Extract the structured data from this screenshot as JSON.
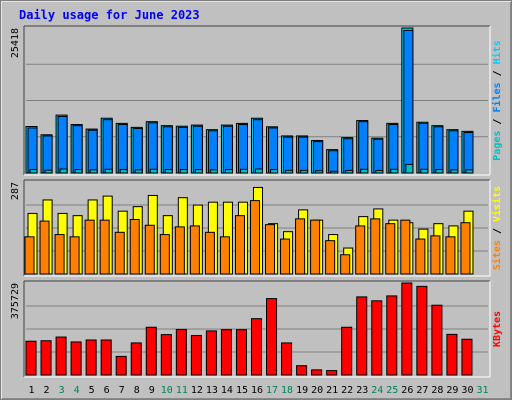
{
  "chart_data": {
    "title": "Daily usage for June 2023",
    "type": "bar",
    "x": [
      "1",
      "2",
      "3",
      "4",
      "5",
      "6",
      "7",
      "8",
      "9",
      "10",
      "11",
      "12",
      "13",
      "14",
      "15",
      "16",
      "17",
      "18",
      "19",
      "20",
      "21",
      "22",
      "23",
      "24",
      "25",
      "26",
      "27",
      "28",
      "29",
      "30",
      "31"
    ],
    "weekend_days": [
      "3",
      "4",
      "10",
      "11",
      "17",
      "18",
      "24",
      "25",
      "31"
    ],
    "panels": [
      {
        "id": "hits-panel",
        "max_label": "25418",
        "ylim": [
          0,
          25418
        ],
        "axis_labels": [
          "Pages",
          "Files",
          "Hits"
        ],
        "series": [
          {
            "name": "Hits",
            "color": "#00ccff",
            "values": [
              8150,
              6700,
              10150,
              8500,
              7700,
              9600,
              8700,
              8000,
              9000,
              8300,
              8200,
              8400,
              7600,
              8400,
              8700,
              9600,
              8100,
              6500,
              6500,
              5700,
              4100,
              6200,
              9200,
              6100,
              8700,
              25418,
              8900,
              8300,
              7600,
              7300,
              0
            ]
          },
          {
            "name": "Files",
            "color": "#0080ff",
            "values": [
              7900,
              6500,
              9900,
              8300,
              7500,
              9350,
              8500,
              7800,
              8800,
              8100,
              8000,
              8200,
              7400,
              8200,
              8500,
              9350,
              7900,
              6300,
              6300,
              5500,
              3900,
              6000,
              9000,
              5900,
              8500,
              25000,
              8700,
              8100,
              7400,
              7100,
              0
            ]
          },
          {
            "name": "Pages",
            "color": "#00c0c0",
            "values": [
              600,
              500,
              700,
              600,
              550,
              650,
              600,
              550,
              650,
              600,
              600,
              600,
              550,
              600,
              650,
              700,
              600,
              450,
              450,
              400,
              300,
              450,
              650,
              450,
              650,
              1500,
              650,
              600,
              550,
              550,
              0
            ]
          }
        ]
      },
      {
        "id": "visits-panel",
        "max_label": "287",
        "ylim": [
          0,
          287
        ],
        "axis_labels": [
          "Sites",
          "Visits"
        ],
        "series": [
          {
            "name": "Visits",
            "color": "#ffff00",
            "values": [
              189,
              231,
              189,
              182,
              231,
              243,
              196,
              210,
              245,
              182,
              238,
              215,
              224,
              224,
              224,
              270,
              157,
              132,
              200,
              168,
              123,
              81,
              179,
              203,
              168,
              160,
              140,
              157,
              150,
              196,
              0
            ]
          },
          {
            "name": "Sites",
            "color": "#ff8000",
            "values": [
              116,
              165,
              123,
              116,
              168,
              168,
              130,
              170,
              152,
              123,
              147,
              150,
              130,
              116,
              182,
              229,
              154,
              109,
              172,
              168,
              104,
              60,
              150,
              172,
              157,
              168,
              109,
              119,
              116,
              160,
              0
            ]
          }
        ]
      },
      {
        "id": "kbytes-panel",
        "max_label": "375729",
        "ylim": [
          0,
          375729
        ],
        "axis_labels": [
          "KBytes"
        ],
        "series": [
          {
            "name": "KBytes",
            "color": "#ff0000",
            "values": [
              138000,
              140000,
              155000,
              135000,
              143000,
              143000,
              76000,
              131000,
              195000,
              165000,
              186000,
              161000,
              180000,
              185000,
              185000,
              230000,
              312000,
              131000,
              38000,
              21000,
              18000,
              195000,
              319000,
              303000,
              323000,
              375729,
              362000,
              285000,
              166000,
              146000,
              0
            ]
          }
        ]
      }
    ]
  },
  "colors": {
    "background": "#c0c0c0",
    "plot_bg": "#c0c0c0",
    "title": "#0000ff",
    "weekday_label": "#000000",
    "weekend_label": "#00805c",
    "gridline": "#808080"
  }
}
